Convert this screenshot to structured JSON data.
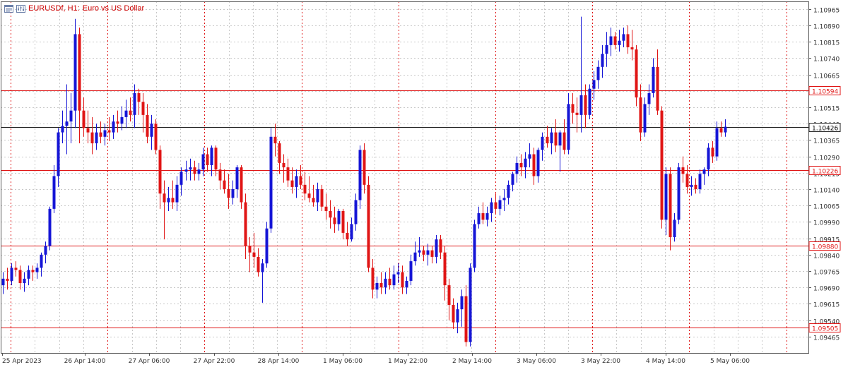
{
  "header": {
    "symbol_timeframe": "EURUSDf, H1:",
    "description": "Euro vs US Dollar"
  },
  "colors": {
    "bull": "#1515d6",
    "bear": "#e01515",
    "level_line": "#e01515",
    "current_price_line": "#222222",
    "grid": "#c8c8c8",
    "period_separator": "#e01515",
    "price_label_bg": "#ffffff"
  },
  "icons": [
    "chart-window-icon",
    "chart-properties-icon"
  ],
  "chart_data": {
    "type": "candlestick",
    "ylim": [
      1.0939,
      1.11
    ],
    "price_ticks": [
      "1.10965",
      "1.10890",
      "1.10815",
      "1.10740",
      "1.10665",
      "1.10590",
      "1.10515",
      "1.10440",
      "1.10365",
      "1.10290",
      "1.10215",
      "1.10140",
      "1.10065",
      "1.09990",
      "1.09915",
      "1.09840",
      "1.09765",
      "1.09690",
      "1.09615",
      "1.09540",
      "1.09465"
    ],
    "time_labels": [
      "25 Apr 2023",
      "26 Apr 14:00",
      "27 Apr 06:00",
      "27 Apr 22:00",
      "28 Apr 14:00",
      "1 May 06:00",
      "1 May 22:00",
      "2 May 14:00",
      "3 May 06:00",
      "3 May 22:00",
      "4 May 14:00",
      "5 May 06:00"
    ],
    "horizontal_levels": [
      {
        "price": 1.10594,
        "label": "1.10594",
        "style": "red"
      },
      {
        "price": 1.10226,
        "label": "1.10226",
        "style": "red"
      },
      {
        "price": 1.0988,
        "label": "1.09880",
        "style": "red"
      },
      {
        "price": 1.09505,
        "label": "1.09505",
        "style": "red"
      }
    ],
    "current_price": {
      "price": 1.10426,
      "label": "1.10426"
    },
    "grid": true,
    "candles": [
      [
        1.097,
        1.0976,
        1.0966,
        1.0973
      ],
      [
        1.0973,
        1.0978,
        1.0968,
        1.0972
      ],
      [
        1.0972,
        1.098,
        1.097,
        1.0978
      ],
      [
        1.0978,
        1.0981,
        1.0974,
        1.0977
      ],
      [
        1.0977,
        1.0979,
        1.0968,
        1.0971
      ],
      [
        1.0971,
        1.0976,
        1.0967,
        1.0973
      ],
      [
        1.0973,
        1.0979,
        1.097,
        1.0977
      ],
      [
        1.0977,
        1.0979,
        1.0972,
        1.0976
      ],
      [
        1.0976,
        1.098,
        1.0973,
        1.0978
      ],
      [
        1.0978,
        1.0985,
        1.0974,
        1.0984
      ],
      [
        1.0984,
        1.099,
        1.098,
        1.0988
      ],
      [
        1.0988,
        1.1006,
        1.0986,
        1.1005
      ],
      [
        1.1005,
        1.1025,
        1.1003,
        1.102
      ],
      [
        1.102,
        1.1042,
        1.1015,
        1.104
      ],
      [
        1.104,
        1.105,
        1.1035,
        1.1043
      ],
      [
        1.1043,
        1.1062,
        1.103,
        1.1045
      ],
      [
        1.1045,
        1.1058,
        1.1035,
        1.105
      ],
      [
        1.105,
        1.1092,
        1.1042,
        1.1085
      ],
      [
        1.1085,
        1.1088,
        1.1035,
        1.105
      ],
      [
        1.105,
        1.1056,
        1.1038,
        1.1042
      ],
      [
        1.1042,
        1.105,
        1.1035,
        1.104
      ],
      [
        1.104,
        1.1047,
        1.103,
        1.1035
      ],
      [
        1.1035,
        1.1044,
        1.1032,
        1.104
      ],
      [
        1.104,
        1.1045,
        1.1035,
        1.1038
      ],
      [
        1.1038,
        1.1044,
        1.1034,
        1.1041
      ],
      [
        1.1041,
        1.1047,
        1.1036,
        1.104
      ],
      [
        1.104,
        1.1048,
        1.1037,
        1.1045
      ],
      [
        1.1045,
        1.105,
        1.104,
        1.1044
      ],
      [
        1.1044,
        1.1052,
        1.1041,
        1.1047
      ],
      [
        1.1047,
        1.1055,
        1.1042,
        1.105
      ],
      [
        1.105,
        1.1056,
        1.1045,
        1.1048
      ],
      [
        1.1048,
        1.1062,
        1.1042,
        1.1058
      ],
      [
        1.1058,
        1.106,
        1.1048,
        1.1054
      ],
      [
        1.1054,
        1.1058,
        1.104,
        1.1048
      ],
      [
        1.1048,
        1.1053,
        1.1035,
        1.1038
      ],
      [
        1.1038,
        1.1048,
        1.1032,
        1.1044
      ],
      [
        1.1044,
        1.1046,
        1.103,
        1.1032
      ],
      [
        1.1032,
        1.1034,
        1.1005,
        1.1012
      ],
      [
        1.1012,
        1.1018,
        1.0991,
        1.1008
      ],
      [
        1.1008,
        1.1015,
        1.1004,
        1.101
      ],
      [
        1.101,
        1.1018,
        1.1005,
        1.1008
      ],
      [
        1.1008,
        1.102,
        1.1004,
        1.1016
      ],
      [
        1.1016,
        1.1024,
        1.1011,
        1.1022
      ],
      [
        1.1022,
        1.1027,
        1.1018,
        1.1023
      ],
      [
        1.1023,
        1.1028,
        1.1018,
        1.1024
      ],
      [
        1.1024,
        1.1027,
        1.1018,
        1.1021
      ],
      [
        1.1021,
        1.1026,
        1.1018,
        1.1023
      ],
      [
        1.1023,
        1.1033,
        1.102,
        1.103
      ],
      [
        1.103,
        1.1033,
        1.1022,
        1.1025
      ],
      [
        1.1025,
        1.1034,
        1.102,
        1.1033
      ],
      [
        1.1033,
        1.1034,
        1.102,
        1.1023
      ],
      [
        1.1023,
        1.1026,
        1.1014,
        1.1018
      ],
      [
        1.1018,
        1.1023,
        1.1012,
        1.1014
      ],
      [
        1.1014,
        1.1021,
        1.1005,
        1.101
      ],
      [
        1.101,
        1.1018,
        1.1007,
        1.1014
      ],
      [
        1.1014,
        1.1025,
        1.101,
        1.1024
      ],
      [
        1.1024,
        1.1025,
        1.1005,
        1.1008
      ],
      [
        1.1008,
        1.1012,
        1.0982,
        1.0988
      ],
      [
        1.0988,
        1.0992,
        1.0976,
        1.0985
      ],
      [
        1.0985,
        1.0994,
        1.0978,
        1.0983
      ],
      [
        1.0983,
        1.0987,
        1.0974,
        1.0976
      ],
      [
        1.0976,
        1.0982,
        1.0962,
        1.098
      ],
      [
        1.098,
        1.0999,
        1.0978,
        1.0996
      ],
      [
        1.0996,
        1.1042,
        1.0994,
        1.1038
      ],
      [
        1.1038,
        1.1044,
        1.1029,
        1.1035
      ],
      [
        1.1035,
        1.1036,
        1.1021,
        1.1026
      ],
      [
        1.1026,
        1.103,
        1.1017,
        1.1024
      ],
      [
        1.1024,
        1.1028,
        1.1015,
        1.1018
      ],
      [
        1.1018,
        1.1024,
        1.1012,
        1.1015
      ],
      [
        1.1015,
        1.1023,
        1.101,
        1.102
      ],
      [
        1.102,
        1.1025,
        1.1014,
        1.1016
      ],
      [
        1.1016,
        1.1022,
        1.1009,
        1.1012
      ],
      [
        1.1012,
        1.102,
        1.1008,
        1.101
      ],
      [
        1.101,
        1.1016,
        1.1006,
        1.1008
      ],
      [
        1.1008,
        1.1017,
        1.1004,
        1.1014
      ],
      [
        1.1014,
        1.1016,
        1.1004,
        1.1006
      ],
      [
        1.1006,
        1.1012,
        1.1,
        1.1004
      ],
      [
        1.1004,
        1.1009,
        1.0996,
        1.1001
      ],
      [
        1.1001,
        1.1006,
        1.0994,
        1.0998
      ],
      [
        1.0998,
        1.1005,
        1.0995,
        1.1004
      ],
      [
        1.1004,
        1.1005,
        1.0991,
        1.0994
      ],
      [
        1.0994,
        1.0999,
        1.0988,
        1.0991
      ],
      [
        1.0991,
        1.1001,
        1.099,
        1.0998
      ],
      [
        1.0998,
        1.1012,
        1.0995,
        1.1009
      ],
      [
        1.1009,
        1.1034,
        1.1005,
        1.1032
      ],
      [
        1.1032,
        1.1035,
        1.1012,
        1.1016
      ],
      [
        1.1016,
        1.102,
        1.0976,
        1.0978
      ],
      [
        1.0978,
        1.0982,
        1.0964,
        1.0968
      ],
      [
        1.0968,
        1.0974,
        1.0964,
        1.0971
      ],
      [
        1.0971,
        1.0976,
        1.0966,
        1.0969
      ],
      [
        1.0969,
        1.0976,
        1.0966,
        1.0973
      ],
      [
        1.0973,
        1.0978,
        1.0968,
        1.097
      ],
      [
        1.097,
        1.0979,
        1.0968,
        1.0975
      ],
      [
        1.0975,
        1.098,
        1.0971,
        1.0976
      ],
      [
        1.0976,
        1.0979,
        1.0966,
        1.0969
      ],
      [
        1.0969,
        1.0974,
        1.0966,
        1.0972
      ],
      [
        1.0972,
        1.0984,
        1.097,
        1.0981
      ],
      [
        1.0981,
        1.099,
        1.0979,
        1.0985
      ],
      [
        1.0985,
        1.0992,
        1.0983,
        1.0986
      ],
      [
        1.0986,
        1.0988,
        1.0981,
        1.0984
      ],
      [
        1.0984,
        1.0989,
        1.0979,
        1.0986
      ],
      [
        1.0986,
        1.0988,
        1.098,
        1.0983
      ],
      [
        1.0983,
        1.0993,
        1.098,
        1.0991
      ],
      [
        1.0991,
        1.0993,
        1.0982,
        1.0985
      ],
      [
        1.0985,
        1.0988,
        1.0963,
        1.097
      ],
      [
        1.097,
        1.0973,
        1.0954,
        1.0961
      ],
      [
        1.0961,
        1.0964,
        1.095,
        1.0953
      ],
      [
        1.0953,
        1.0962,
        1.0948,
        1.0959
      ],
      [
        1.0959,
        1.0968,
        1.0951,
        1.0965
      ],
      [
        1.0965,
        1.097,
        1.0942,
        1.0944
      ],
      [
        1.0944,
        1.098,
        1.0942,
        1.0978
      ],
      [
        1.0978,
        1.1,
        1.0976,
        1.0998
      ],
      [
        1.0998,
        1.1006,
        1.0996,
        1.1003
      ],
      [
        1.1003,
        1.1008,
        1.0998,
        1.1
      ],
      [
        1.1,
        1.1006,
        1.0997,
        1.1003
      ],
      [
        1.1003,
        1.101,
        1.0999,
        1.1008
      ],
      [
        1.1008,
        1.1012,
        1.1003,
        1.1005
      ],
      [
        1.1005,
        1.1011,
        1.1002,
        1.1009
      ],
      [
        1.1009,
        1.1014,
        1.1004,
        1.101
      ],
      [
        1.101,
        1.1018,
        1.1007,
        1.1016
      ],
      [
        1.1016,
        1.1022,
        1.1013,
        1.1021
      ],
      [
        1.1021,
        1.1029,
        1.1017,
        1.1026
      ],
      [
        1.1026,
        1.103,
        1.102,
        1.1024
      ],
      [
        1.1024,
        1.1031,
        1.1019,
        1.1028
      ],
      [
        1.1028,
        1.1035,
        1.1024,
        1.103
      ],
      [
        1.103,
        1.1033,
        1.1016,
        1.102
      ],
      [
        1.102,
        1.1033,
        1.1017,
        1.1032
      ],
      [
        1.1032,
        1.104,
        1.1027,
        1.1038
      ],
      [
        1.1038,
        1.1043,
        1.1033,
        1.1035
      ],
      [
        1.1035,
        1.1042,
        1.103,
        1.104
      ],
      [
        1.104,
        1.1046,
        1.1031,
        1.1034
      ],
      [
        1.1034,
        1.1041,
        1.1022,
        1.104
      ],
      [
        1.104,
        1.1046,
        1.103,
        1.1032
      ],
      [
        1.1032,
        1.1058,
        1.103,
        1.1053
      ],
      [
        1.1053,
        1.1058,
        1.1044,
        1.1049
      ],
      [
        1.1049,
        1.1056,
        1.104,
        1.1048
      ],
      [
        1.1048,
        1.1093,
        1.104,
        1.1057
      ],
      [
        1.1057,
        1.1062,
        1.1042,
        1.1048
      ],
      [
        1.1048,
        1.1062,
        1.1046,
        1.106
      ],
      [
        1.106,
        1.1068,
        1.1055,
        1.1064
      ],
      [
        1.1064,
        1.1073,
        1.106,
        1.107
      ],
      [
        1.107,
        1.108,
        1.1065,
        1.1076
      ],
      [
        1.1076,
        1.1086,
        1.107,
        1.108
      ],
      [
        1.108,
        1.1088,
        1.1075,
        1.1084
      ],
      [
        1.1084,
        1.1086,
        1.1078,
        1.108
      ],
      [
        1.108,
        1.1087,
        1.1077,
        1.1082
      ],
      [
        1.1082,
        1.1088,
        1.1079,
        1.1085
      ],
      [
        1.1085,
        1.1089,
        1.1076,
        1.1079
      ],
      [
        1.1079,
        1.1087,
        1.1073,
        1.1078
      ],
      [
        1.1078,
        1.108,
        1.1052,
        1.1056
      ],
      [
        1.1056,
        1.1062,
        1.1036,
        1.104
      ],
      [
        1.104,
        1.1056,
        1.1038,
        1.1053
      ],
      [
        1.1053,
        1.1062,
        1.1048,
        1.1058
      ],
      [
        1.1058,
        1.1074,
        1.1056,
        1.107
      ],
      [
        1.107,
        1.1078,
        1.1048,
        1.105
      ],
      [
        1.105,
        1.1052,
        1.0996,
        1.1
      ],
      [
        1.1,
        1.1024,
        1.0993,
        1.1021
      ],
      [
        1.1021,
        1.1024,
        1.0986,
        1.0992
      ],
      [
        1.0992,
        1.1003,
        1.099,
        1.1
      ],
      [
        1.1,
        1.1026,
        1.0998,
        1.1024
      ],
      [
        1.1024,
        1.1029,
        1.1017,
        1.1021
      ],
      [
        1.1021,
        1.1025,
        1.1012,
        1.1015
      ],
      [
        1.1015,
        1.102,
        1.1011,
        1.1016
      ],
      [
        1.1016,
        1.1019,
        1.1012,
        1.1014
      ],
      [
        1.1014,
        1.1023,
        1.1012,
        1.1021
      ],
      [
        1.1021,
        1.1024,
        1.1016,
        1.1023
      ],
      [
        1.1023,
        1.1035,
        1.102,
        1.1033
      ],
      [
        1.1033,
        1.1036,
        1.1026,
        1.1029
      ],
      [
        1.1029,
        1.1045,
        1.1027,
        1.1042
      ],
      [
        1.1042,
        1.1045,
        1.1038,
        1.104
      ],
      [
        1.104,
        1.1046,
        1.1038,
        1.10426
      ]
    ]
  }
}
